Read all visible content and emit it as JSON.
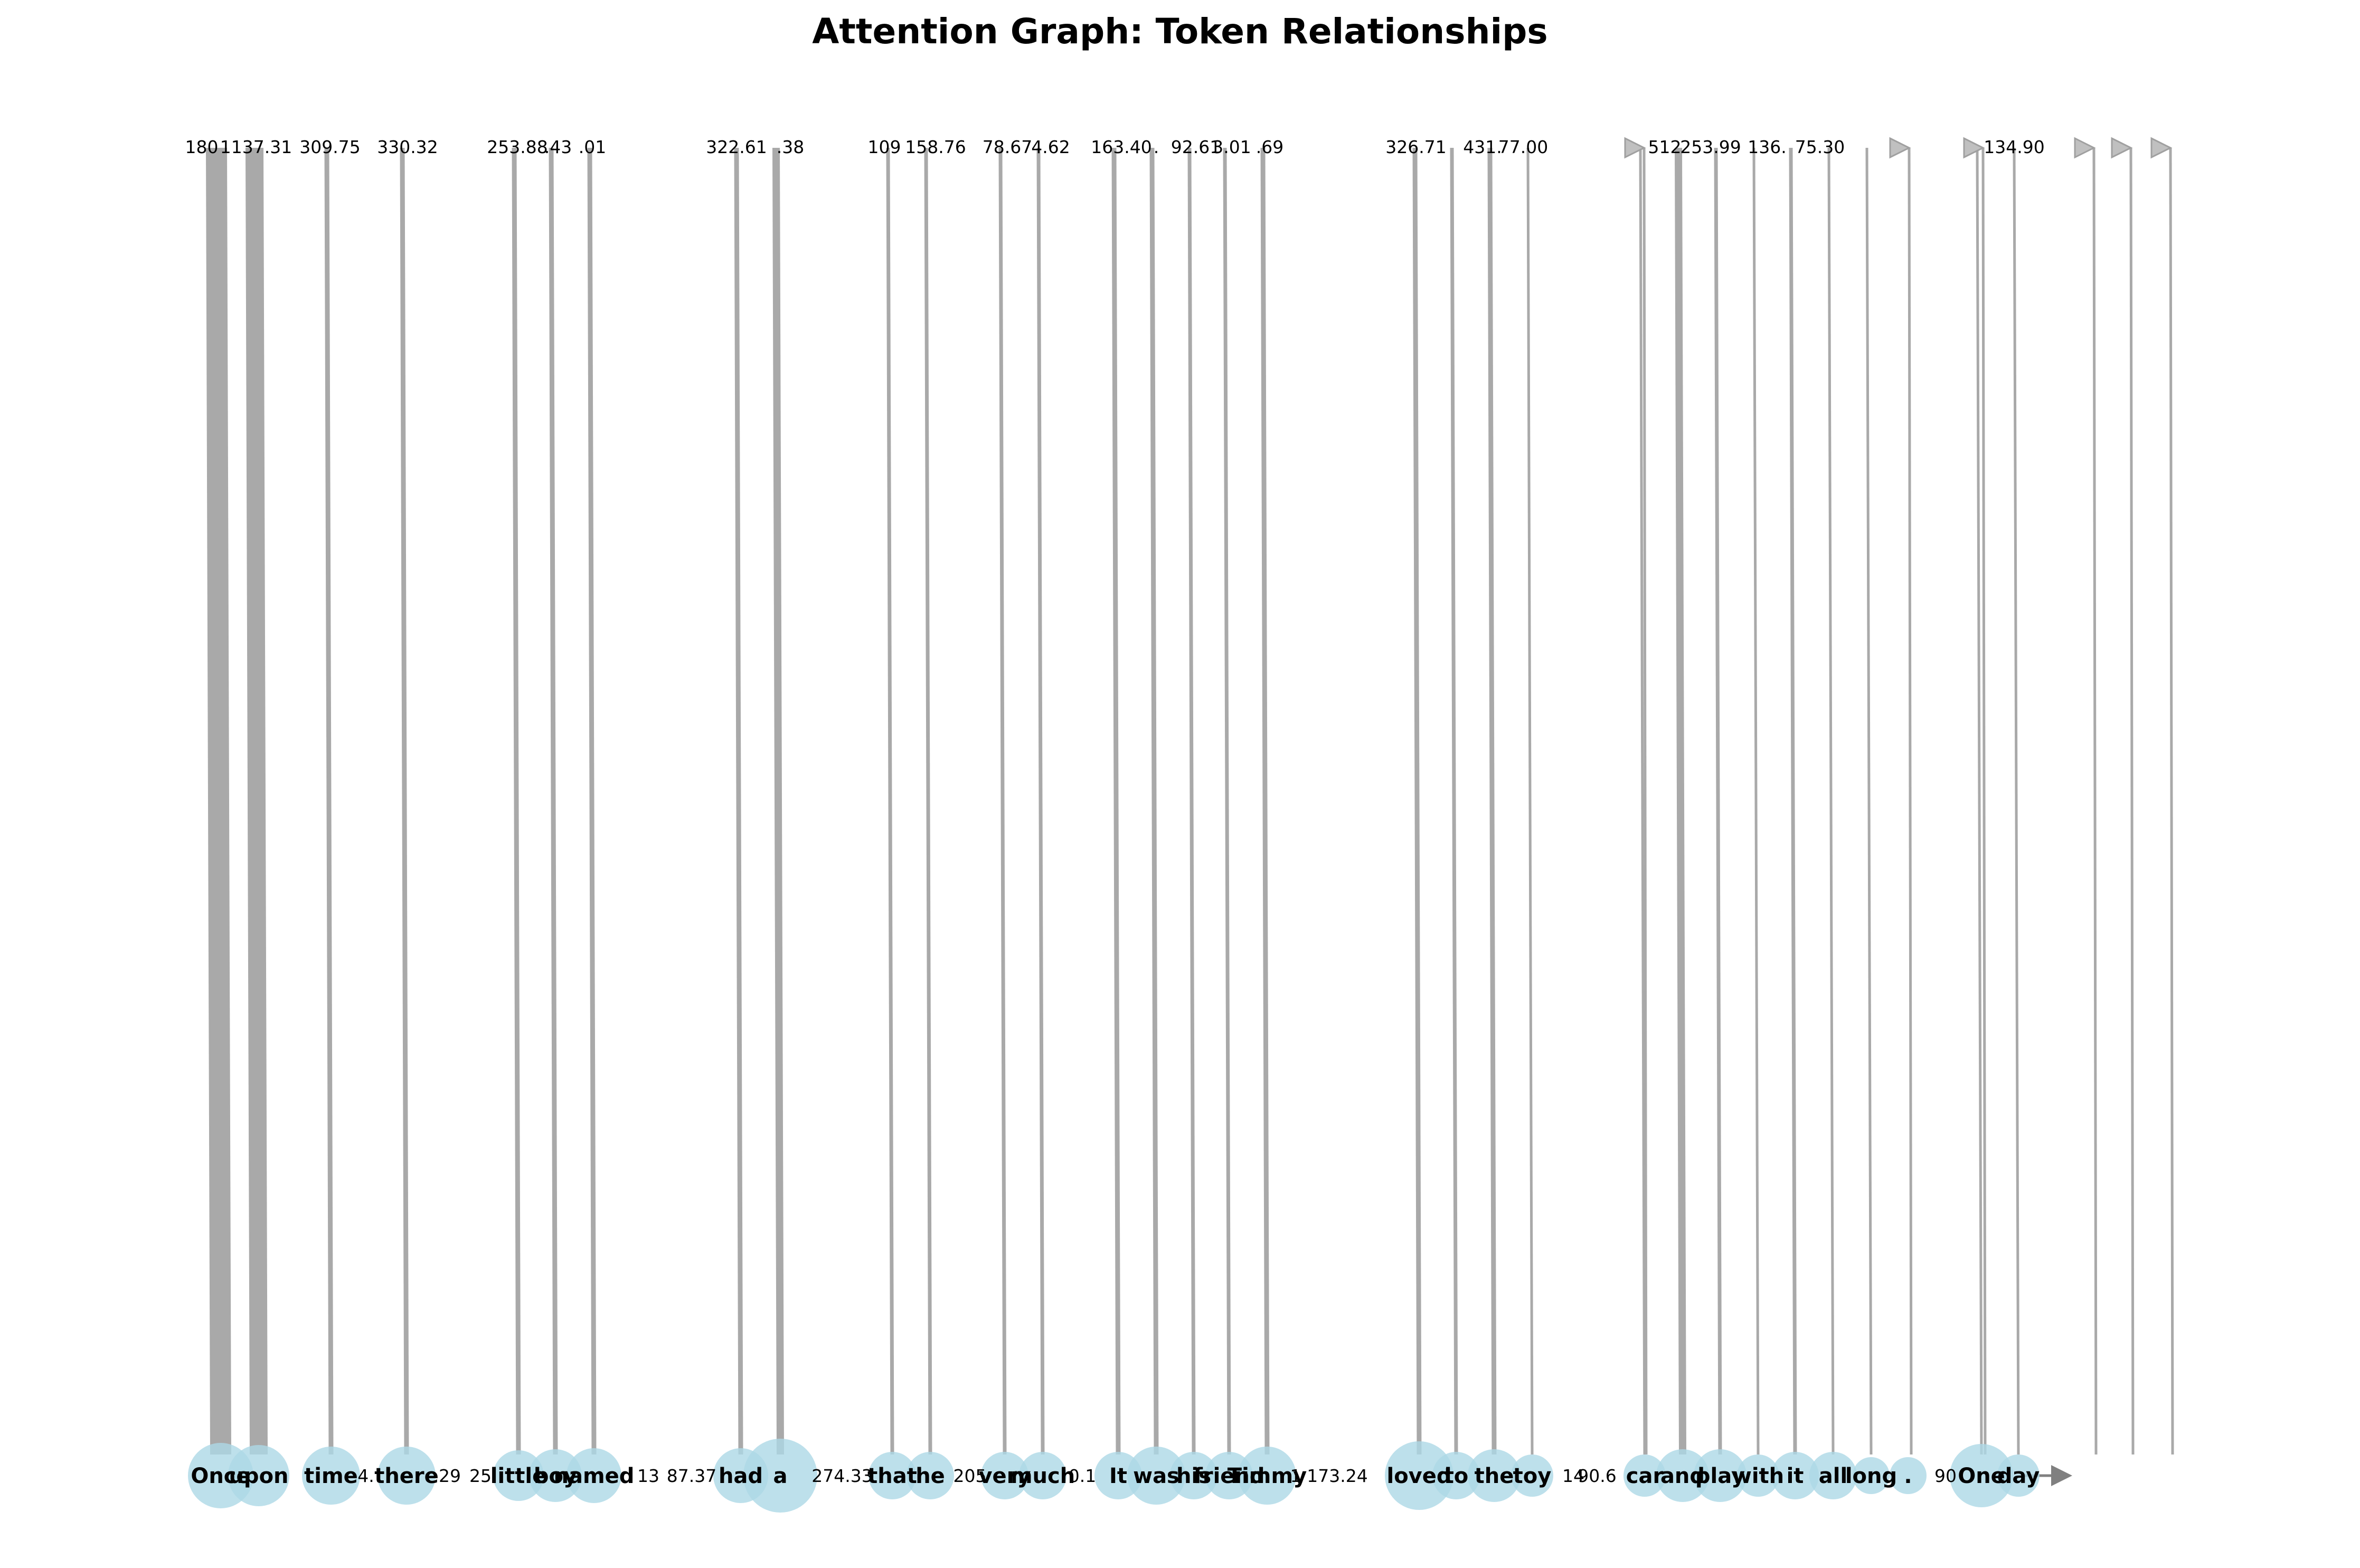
{
  "title": "Attention Graph: Token Relationships",
  "colors": {
    "node_fill": "#add8e6",
    "edge": "#a9a9a9",
    "arrow_dark": "#808080",
    "text": "#000000"
  },
  "tokens": [
    "Once",
    "upon",
    "time",
    "there",
    "little",
    "boy",
    "named",
    "had",
    "a",
    "that",
    "he",
    "very",
    "much",
    "It",
    "was",
    "his",
    "friend",
    "Timmy",
    "loved",
    "to",
    "the",
    "toy",
    "car",
    "and",
    "play",
    "with",
    "it",
    "all",
    "long",
    ".",
    "One",
    "day"
  ],
  "edge_labels": [
    "180",
    "1137.31",
    "309.75",
    "330.32",
    "253.88",
    ".43",
    ".01",
    "322.61",
    ".38",
    "109",
    "158.76",
    "78.67",
    "4.62",
    "163.40",
    ".",
    "92.61",
    "3.01",
    ".69",
    "326.71",
    "431.",
    "77.00",
    "512",
    "253.99",
    "136.",
    "75.30",
    "134.90"
  ],
  "side_labels": [
    "4.",
    "29",
    "25",
    "13",
    "87.37",
    "274.33",
    "205",
    "0.1",
    "1",
    "173.24",
    "14",
    "90.6",
    "90"
  ],
  "chart_data": {
    "type": "graph",
    "title": "Attention Graph: Token Relationships",
    "nodes": [
      "Once",
      "upon",
      "time",
      "there",
      "little",
      "boy",
      "named",
      "had",
      "a",
      "that",
      "he",
      "very",
      "much",
      "It",
      "was",
      "his",
      "friend",
      "Timmy",
      "loved",
      "to",
      "the",
      "toy",
      "car",
      "and",
      "play",
      "with",
      "it",
      "all",
      "long",
      ".",
      "One",
      "day"
    ]
  }
}
